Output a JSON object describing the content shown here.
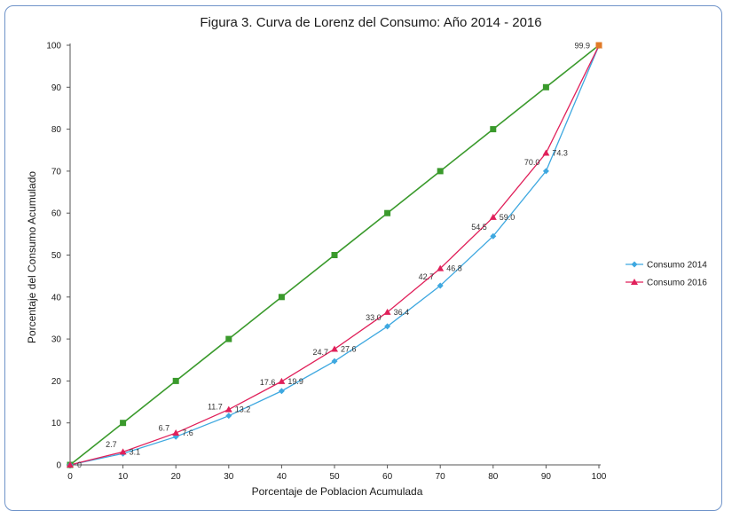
{
  "chart_data": {
    "type": "line",
    "title": "Figura 3. Curva de Lorenz del Consumo: Año 2014 - 2016",
    "xlabel": "Porcentaje de Poblacion Acumulada",
    "ylabel": "Porcentaje del Consumo Acumulado",
    "xlim": [
      0,
      100
    ],
    "ylim": [
      0,
      100
    ],
    "xticks": [
      "0",
      "10",
      "20",
      "30",
      "40",
      "50",
      "60",
      "70",
      "80",
      "90",
      "100"
    ],
    "yticks": [
      "0",
      "10",
      "20",
      "30",
      "40",
      "50",
      "60",
      "70",
      "80",
      "90",
      "100"
    ],
    "grid": false,
    "legend_position": "right",
    "x": [
      0,
      10,
      20,
      30,
      40,
      50,
      60,
      70,
      80,
      90,
      100
    ],
    "series": [
      {
        "name": "",
        "color": "#3a9a2c",
        "marker": "square",
        "values": [
          0,
          10,
          20,
          30,
          40,
          50,
          60,
          70,
          80,
          90,
          100
        ]
      },
      {
        "name": "Consumo 2014",
        "color": "#3ea8e0",
        "marker": "diamond",
        "values": [
          0,
          2.7,
          6.7,
          11.7,
          17.6,
          24.7,
          33.0,
          42.7,
          54.5,
          70.0,
          99.9
        ],
        "labels": [
          "0",
          "2.7",
          "6.7",
          "11.7",
          "17.6",
          "24.7",
          "33.0",
          "42.7",
          "54.5",
          "70.0",
          "99.9"
        ]
      },
      {
        "name": "Consumo 2016",
        "color": "#e0205a",
        "marker": "triangle",
        "values": [
          0,
          3.1,
          7.6,
          13.2,
          19.9,
          27.6,
          36.4,
          46.8,
          59.0,
          74.3,
          99.9
        ],
        "labels": [
          "",
          "3.1",
          "7.6",
          "13.2",
          "19.9",
          "27.6",
          "36.4",
          "46.8",
          "59.0",
          "74.3",
          ""
        ]
      }
    ],
    "end_marker_color": "#e07b28"
  }
}
